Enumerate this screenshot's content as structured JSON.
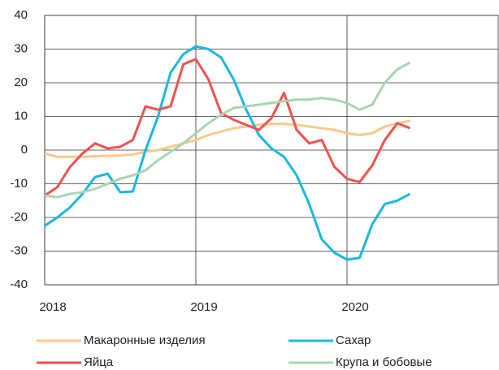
{
  "chart_data": {
    "type": "line",
    "x": [
      2018,
      2018.083,
      2018.167,
      2018.25,
      2018.333,
      2018.417,
      2018.5,
      2018.583,
      2018.667,
      2018.75,
      2018.833,
      2018.917,
      2019,
      2019.083,
      2019.167,
      2019.25,
      2019.333,
      2019.417,
      2019.5,
      2019.583,
      2019.667,
      2019.75,
      2019.833,
      2019.917,
      2020,
      2020.083,
      2020.167,
      2020.25,
      2020.333,
      2020.417
    ],
    "series": [
      {
        "name": "Макаронные изделия",
        "color": "#f9c98a",
        "values": [
          -1,
          -2,
          -2,
          -2,
          -1.8,
          -1.7,
          -1.6,
          -1.3,
          -0.5,
          0,
          1,
          2,
          3,
          4.5,
          5.5,
          6.5,
          7,
          7.5,
          7.8,
          7.8,
          7.5,
          7,
          6.5,
          6,
          5,
          4.5,
          5,
          7,
          8,
          8.7
        ]
      },
      {
        "name": "Сахар",
        "color": "#1ab8e0",
        "values": [
          -22.5,
          -20,
          -17,
          -13,
          -8,
          -7,
          -12.5,
          -12.3,
          0,
          10,
          23,
          28.5,
          30.8,
          30,
          27.5,
          21,
          12,
          4.5,
          0.5,
          -2,
          -7.5,
          -16,
          -26.5,
          -30.5,
          -32.5,
          -32,
          -22,
          -16,
          -15,
          -13
        ]
      },
      {
        "name": "Яйца",
        "color": "#f0524f",
        "values": [
          -13.5,
          -11,
          -5,
          -1,
          2,
          0.5,
          1,
          3,
          13,
          12,
          13,
          25.5,
          27,
          21,
          11,
          9,
          7.5,
          6,
          9.5,
          17,
          6,
          2,
          3,
          -5,
          -8.5,
          -9.5,
          -4.5,
          3,
          8,
          6.5
        ]
      },
      {
        "name": "Крупа и бобовые",
        "color": "#a8d5b0",
        "values": [
          -13.5,
          -14,
          -13,
          -12.5,
          -11.5,
          -10,
          -8.5,
          -7.5,
          -6,
          -3,
          -0.5,
          2,
          5,
          8,
          10.5,
          12.5,
          13,
          13.5,
          14,
          14.5,
          15,
          15,
          15.5,
          15,
          14,
          12,
          13.5,
          20,
          24,
          26
        ]
      }
    ],
    "xlim": [
      2018,
      2021
    ],
    "xticks": [
      2018,
      2019,
      2020
    ],
    "ylim": [
      -40,
      40
    ],
    "yticks": [
      -40,
      -30,
      -20,
      -10,
      0,
      10,
      20,
      30,
      40
    ],
    "grid": true
  }
}
